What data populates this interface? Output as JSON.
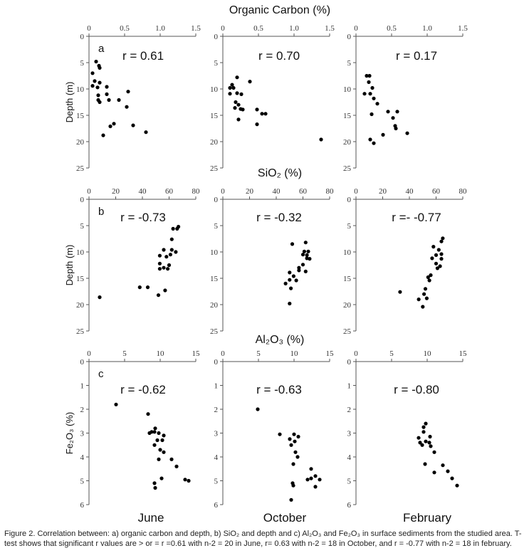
{
  "caption": "Figure 2. Correlation between: a) organic carbon and depth, b) SiO₂ and depth and c) Al₂O₃ and Fe₂O₃ in surface sediments from the studied area. T-test shows that significant r values are > or = r =0.61 with n-2 = 20 in June, r= 0.63 with n-2 = 18 in October, and r = -0.77 with n-2 = 18 in february.",
  "months": [
    "June",
    "October",
    "February"
  ],
  "chart_data": [
    {
      "type": "scatter",
      "row": "a",
      "title": "Organic Carbon (%)",
      "ylabel": "Depth (m)",
      "xlim": [
        0,
        1.5
      ],
      "xticks": [
        "0",
        "0.5",
        "1.0",
        "1.5"
      ],
      "ylim": [
        0,
        25
      ],
      "yticks": [
        "0",
        "5",
        "10",
        "15",
        "20",
        "25"
      ],
      "panels": [
        {
          "month": "June",
          "r": "r = 0.61",
          "points": [
            [
              0.1,
              4.8
            ],
            [
              0.14,
              5.6
            ],
            [
              0.15,
              6.0
            ],
            [
              0.05,
              7.0
            ],
            [
              0.08,
              8.5
            ],
            [
              0.15,
              8.8
            ],
            [
              0.05,
              9.4
            ],
            [
              0.12,
              9.7
            ],
            [
              0.25,
              9.6
            ],
            [
              0.55,
              10.5
            ],
            [
              0.13,
              11.2
            ],
            [
              0.25,
              11.0
            ],
            [
              0.13,
              12.1
            ],
            [
              0.28,
              12.1
            ],
            [
              0.42,
              12.1
            ],
            [
              0.15,
              12.5
            ],
            [
              0.53,
              13.4
            ],
            [
              0.35,
              16.6
            ],
            [
              0.3,
              17.1
            ],
            [
              0.62,
              16.9
            ],
            [
              0.2,
              18.8
            ],
            [
              0.8,
              18.2
            ]
          ]
        },
        {
          "month": "October",
          "r": "r = 0.70",
          "points": [
            [
              0.2,
              7.8
            ],
            [
              0.38,
              8.6
            ],
            [
              0.13,
              9.2
            ],
            [
              0.1,
              9.8
            ],
            [
              0.15,
              9.8
            ],
            [
              0.1,
              10.9
            ],
            [
              0.2,
              10.8
            ],
            [
              0.26,
              11.0
            ],
            [
              0.18,
              12.5
            ],
            [
              0.22,
              13.0
            ],
            [
              0.17,
              13.6
            ],
            [
              0.25,
              13.8
            ],
            [
              0.28,
              13.9
            ],
            [
              0.48,
              13.9
            ],
            [
              0.55,
              14.7
            ],
            [
              0.6,
              14.7
            ],
            [
              0.22,
              15.8
            ],
            [
              0.48,
              16.7
            ],
            [
              1.38,
              19.6
            ]
          ]
        },
        {
          "month": "February",
          "r": "r = 0.17",
          "points": [
            [
              0.15,
              7.5
            ],
            [
              0.19,
              7.5
            ],
            [
              0.18,
              8.7
            ],
            [
              0.23,
              9.8
            ],
            [
              0.12,
              10.9
            ],
            [
              0.2,
              10.9
            ],
            [
              0.25,
              11.8
            ],
            [
              0.3,
              12.8
            ],
            [
              0.45,
              14.3
            ],
            [
              0.58,
              14.3
            ],
            [
              0.22,
              14.8
            ],
            [
              0.52,
              15.5
            ],
            [
              0.55,
              17.0
            ],
            [
              0.56,
              17.5
            ],
            [
              0.38,
              18.7
            ],
            [
              0.2,
              19.6
            ],
            [
              0.25,
              20.3
            ],
            [
              0.72,
              18.4
            ]
          ]
        }
      ]
    },
    {
      "type": "scatter",
      "row": "b",
      "title": "SiO₂ (%)",
      "ylabel": "Depth (m)",
      "xlim": [
        0,
        80
      ],
      "xticks": [
        "0",
        "20",
        "40",
        "60",
        "80"
      ],
      "ylim": [
        0,
        25
      ],
      "yticks": [
        "0",
        "5",
        "10",
        "15",
        "20",
        "25"
      ],
      "panels": [
        {
          "month": "June",
          "r": "r = -0.73",
          "points": [
            [
              67,
              5.2
            ],
            [
              66,
              5.6
            ],
            [
              63,
              5.6
            ],
            [
              62,
              7.6
            ],
            [
              56,
              9.6
            ],
            [
              62,
              9.6
            ],
            [
              65,
              10.0
            ],
            [
              61,
              10.5
            ],
            [
              53,
              10.7
            ],
            [
              58,
              10.9
            ],
            [
              53,
              12.2
            ],
            [
              60,
              12.5
            ],
            [
              53,
              13.2
            ],
            [
              56,
              13.0
            ],
            [
              59,
              13.2
            ],
            [
              8,
              18.6
            ],
            [
              38,
              16.7
            ],
            [
              44,
              16.7
            ],
            [
              57,
              17.3
            ],
            [
              52,
              18.2
            ]
          ]
        },
        {
          "month": "October",
          "r": "r = -0.32",
          "points": [
            [
              62,
              8.2
            ],
            [
              52,
              8.5
            ],
            [
              61,
              9.9
            ],
            [
              64,
              9.9
            ],
            [
              60,
              10.5
            ],
            [
              63,
              10.6
            ],
            [
              63,
              11.2
            ],
            [
              65,
              11.3
            ],
            [
              60,
              12.4
            ],
            [
              57,
              13.0
            ],
            [
              62,
              13.7
            ],
            [
              57,
              13.5
            ],
            [
              50,
              13.9
            ],
            [
              53,
              14.6
            ],
            [
              50,
              15.3
            ],
            [
              55,
              15.4
            ],
            [
              51,
              16.9
            ],
            [
              47,
              16.0
            ],
            [
              50,
              19.8
            ]
          ]
        },
        {
          "month": "February",
          "r": "r =- -0.77",
          "points": [
            [
              65,
              7.4
            ],
            [
              64,
              8.0
            ],
            [
              58,
              9.0
            ],
            [
              62,
              9.6
            ],
            [
              64,
              10.4
            ],
            [
              60,
              10.6
            ],
            [
              57,
              11.2
            ],
            [
              64,
              11.3
            ],
            [
              60,
              12.2
            ],
            [
              63,
              12.7
            ],
            [
              61,
              13.1
            ],
            [
              56,
              14.4
            ],
            [
              54,
              14.8
            ],
            [
              55,
              15.4
            ],
            [
              52,
              17.0
            ],
            [
              33,
              17.6
            ],
            [
              51,
              18.0
            ],
            [
              53,
              18.8
            ],
            [
              50,
              20.4
            ],
            [
              47,
              19.0
            ]
          ]
        }
      ]
    },
    {
      "type": "scatter",
      "row": "c",
      "title": "Al₂O₃ (%)",
      "ylabel": "Fe₂O₃ (%)",
      "xlim": [
        0,
        15
      ],
      "xticks": [
        "0",
        "5",
        "10",
        "15"
      ],
      "ylim": [
        0,
        6
      ],
      "yticks": [
        "0",
        "1",
        "2",
        "3",
        "4",
        "5",
        "6"
      ],
      "panels": [
        {
          "month": "June",
          "r": "r = -0.62",
          "points": [
            [
              3.8,
              1.8
            ],
            [
              8.3,
              2.2
            ],
            [
              9.3,
              2.8
            ],
            [
              8.8,
              2.95
            ],
            [
              9.2,
              2.95
            ],
            [
              8.5,
              3.0
            ],
            [
              9.8,
              3.0
            ],
            [
              10.5,
              3.1
            ],
            [
              9.6,
              3.3
            ],
            [
              10.3,
              3.3
            ],
            [
              9.2,
              3.5
            ],
            [
              10.0,
              3.7
            ],
            [
              10.5,
              3.8
            ],
            [
              9.8,
              4.1
            ],
            [
              11.6,
              4.1
            ],
            [
              12.3,
              4.4
            ],
            [
              13.5,
              4.95
            ],
            [
              14.0,
              5.0
            ],
            [
              9.2,
              5.1
            ],
            [
              9.3,
              5.3
            ],
            [
              10.2,
              4.9
            ]
          ]
        },
        {
          "month": "October",
          "r": "r = -0.63",
          "points": [
            [
              4.9,
              2.0
            ],
            [
              8.0,
              3.05
            ],
            [
              10.0,
              3.05
            ],
            [
              10.6,
              3.15
            ],
            [
              9.4,
              3.25
            ],
            [
              10.1,
              3.35
            ],
            [
              9.6,
              3.5
            ],
            [
              10.2,
              3.8
            ],
            [
              10.5,
              4.0
            ],
            [
              9.9,
              4.3
            ],
            [
              12.4,
              4.5
            ],
            [
              11.9,
              4.95
            ],
            [
              12.4,
              4.9
            ],
            [
              13.0,
              4.8
            ],
            [
              13.6,
              4.95
            ],
            [
              9.8,
              5.1
            ],
            [
              9.9,
              5.2
            ],
            [
              13.0,
              5.25
            ],
            [
              9.6,
              5.8
            ]
          ]
        },
        {
          "month": "February",
          "r": "r = -0.80",
          "points": [
            [
              9.8,
              2.6
            ],
            [
              9.5,
              2.75
            ],
            [
              9.5,
              2.95
            ],
            [
              8.8,
              3.2
            ],
            [
              10.4,
              3.15
            ],
            [
              9.0,
              3.4
            ],
            [
              9.3,
              3.5
            ],
            [
              9.8,
              3.35
            ],
            [
              10.3,
              3.4
            ],
            [
              11.0,
              3.8
            ],
            [
              10.5,
              3.55
            ],
            [
              9.7,
              4.3
            ],
            [
              11.0,
              4.65
            ],
            [
              12.2,
              4.35
            ],
            [
              12.9,
              4.6
            ],
            [
              13.5,
              4.9
            ],
            [
              14.2,
              5.2
            ]
          ]
        }
      ]
    }
  ]
}
